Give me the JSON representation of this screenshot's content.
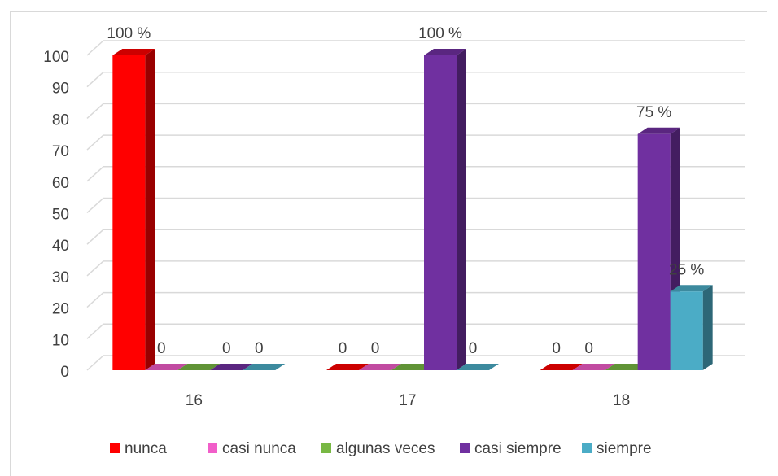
{
  "chart_data": {
    "type": "bar3d",
    "categories": [
      "16",
      "17",
      "18"
    ],
    "series": [
      {
        "name": "nunca",
        "color": "#ff0000",
        "values": [
          100,
          0,
          0
        ],
        "value_labels": [
          "100 %",
          "0",
          "0"
        ]
      },
      {
        "name": "casi nunca",
        "color": "#f15ec9",
        "values": [
          0,
          0,
          0
        ],
        "value_labels": [
          "0",
          "0",
          "0"
        ]
      },
      {
        "name": "algunas veces",
        "color": "#78b844",
        "values": [
          0,
          0,
          0
        ],
        "value_labels": [
          null,
          null,
          null
        ]
      },
      {
        "name": "casi siempre",
        "color": "#7030a0",
        "values": [
          0,
          100,
          75
        ],
        "value_labels": [
          "0",
          "100 %",
          "75 %"
        ]
      },
      {
        "name": "siempre",
        "color": "#4bacc6",
        "values": [
          0,
          0,
          25
        ],
        "value_labels": [
          "0",
          "0",
          "25 %"
        ]
      }
    ],
    "ylim": [
      0,
      100
    ],
    "yticks": [
      0,
      10,
      20,
      30,
      40,
      50,
      60,
      70,
      80,
      90,
      100
    ],
    "grid": true,
    "legend": "bottom"
  }
}
